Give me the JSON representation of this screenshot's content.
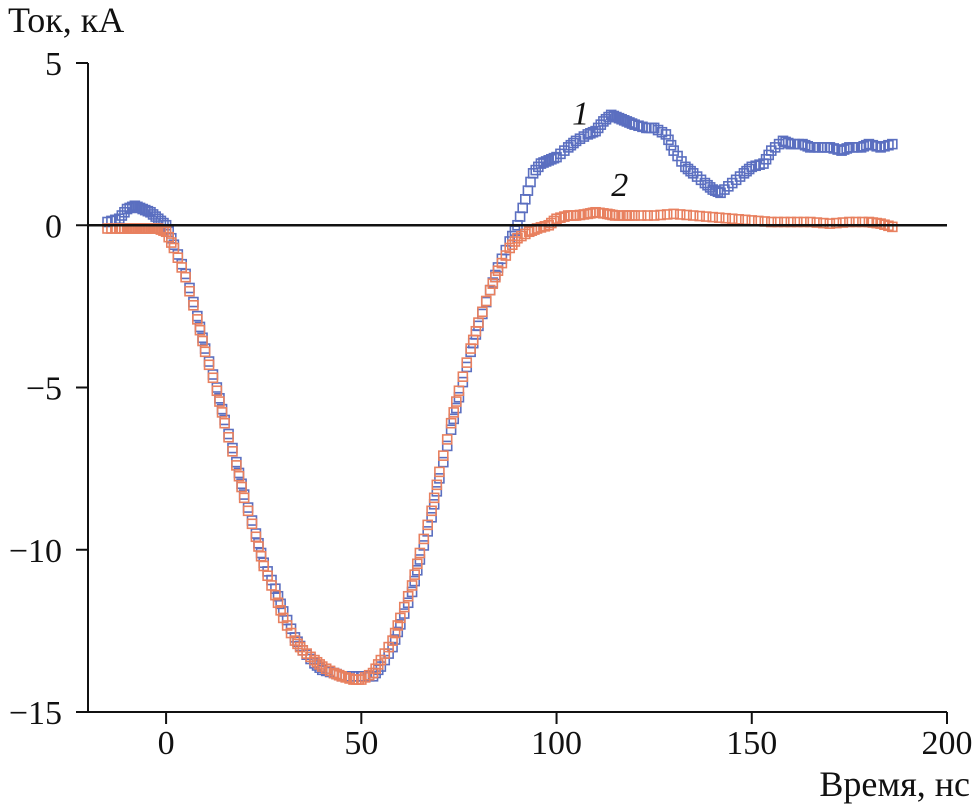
{
  "chart_data": {
    "type": "scatter",
    "ylabel": "Ток, кА",
    "xlabel": "Время, нс",
    "xlim": [
      -20,
      200
    ],
    "ylim": [
      -15,
      5
    ],
    "xticks": [
      0,
      50,
      100,
      150,
      200
    ],
    "yticks": [
      5,
      0,
      -5,
      -10,
      -15
    ],
    "ytick_labels": [
      "5",
      "0",
      "−5",
      "−10",
      "−15"
    ],
    "grid": false,
    "zero_line": true,
    "series": [
      {
        "name": "1",
        "color": "#5b6fc0",
        "marker": "square",
        "points": [
          [
            -15,
            0.1
          ],
          [
            -12,
            0.2
          ],
          [
            -10,
            0.5
          ],
          [
            -8,
            0.6
          ],
          [
            -6,
            0.5
          ],
          [
            -4,
            0.4
          ],
          [
            -2,
            0.2
          ],
          [
            0,
            0
          ],
          [
            2,
            -0.6
          ],
          [
            5,
            -1.5
          ],
          [
            8,
            -2.8
          ],
          [
            10,
            -3.8
          ],
          [
            13,
            -5.0
          ],
          [
            15,
            -6.0
          ],
          [
            18,
            -7.3
          ],
          [
            20,
            -8.3
          ],
          [
            23,
            -9.5
          ],
          [
            25,
            -10.4
          ],
          [
            28,
            -11.2
          ],
          [
            30,
            -11.9
          ],
          [
            33,
            -12.7
          ],
          [
            35,
            -13.1
          ],
          [
            38,
            -13.5
          ],
          [
            40,
            -13.7
          ],
          [
            43,
            -13.8
          ],
          [
            45,
            -13.9
          ],
          [
            48,
            -13.9
          ],
          [
            50,
            -13.9
          ],
          [
            53,
            -13.9
          ],
          [
            55,
            -13.6
          ],
          [
            58,
            -13.0
          ],
          [
            60,
            -12.3
          ],
          [
            63,
            -11.3
          ],
          [
            65,
            -10.3
          ],
          [
            68,
            -9.0
          ],
          [
            70,
            -7.8
          ],
          [
            73,
            -6.3
          ],
          [
            75,
            -5.3
          ],
          [
            78,
            -3.9
          ],
          [
            80,
            -3.1
          ],
          [
            83,
            -2.0
          ],
          [
            85,
            -1.3
          ],
          [
            88,
            -0.5
          ],
          [
            90,
            0.0
          ],
          [
            92,
            0.8
          ],
          [
            94,
            1.6
          ],
          [
            96,
            1.9
          ],
          [
            98,
            2.0
          ],
          [
            100,
            2.1
          ],
          [
            103,
            2.4
          ],
          [
            105,
            2.6
          ],
          [
            108,
            2.8
          ],
          [
            110,
            2.9
          ],
          [
            112,
            3.2
          ],
          [
            114,
            3.4
          ],
          [
            116,
            3.3
          ],
          [
            118,
            3.2
          ],
          [
            120,
            3.1
          ],
          [
            123,
            3.0
          ],
          [
            125,
            3.0
          ],
          [
            128,
            2.8
          ],
          [
            130,
            2.3
          ],
          [
            133,
            1.8
          ],
          [
            135,
            1.6
          ],
          [
            138,
            1.3
          ],
          [
            140,
            1.1
          ],
          [
            142,
            1.0
          ],
          [
            145,
            1.3
          ],
          [
            148,
            1.6
          ],
          [
            150,
            1.8
          ],
          [
            153,
            1.9
          ],
          [
            155,
            2.3
          ],
          [
            158,
            2.6
          ],
          [
            160,
            2.5
          ],
          [
            163,
            2.5
          ],
          [
            165,
            2.4
          ],
          [
            168,
            2.4
          ],
          [
            170,
            2.4
          ],
          [
            173,
            2.3
          ],
          [
            175,
            2.4
          ],
          [
            178,
            2.4
          ],
          [
            180,
            2.5
          ],
          [
            183,
            2.4
          ],
          [
            186,
            2.5
          ]
        ]
      },
      {
        "name": "2",
        "color": "#e8805f",
        "marker": "square",
        "points": [
          [
            -15,
            -0.1
          ],
          [
            -12,
            -0.1
          ],
          [
            -10,
            -0.1
          ],
          [
            -8,
            -0.1
          ],
          [
            -6,
            -0.1
          ],
          [
            -4,
            -0.1
          ],
          [
            -2,
            -0.1
          ],
          [
            0,
            -0.2
          ],
          [
            2,
            -0.7
          ],
          [
            5,
            -1.6
          ],
          [
            8,
            -2.9
          ],
          [
            10,
            -3.9
          ],
          [
            13,
            -5.1
          ],
          [
            15,
            -6.1
          ],
          [
            18,
            -7.4
          ],
          [
            20,
            -8.4
          ],
          [
            23,
            -9.6
          ],
          [
            25,
            -10.5
          ],
          [
            28,
            -11.4
          ],
          [
            30,
            -12.1
          ],
          [
            33,
            -12.8
          ],
          [
            35,
            -13.1
          ],
          [
            38,
            -13.4
          ],
          [
            40,
            -13.6
          ],
          [
            43,
            -13.8
          ],
          [
            45,
            -13.9
          ],
          [
            48,
            -14.0
          ],
          [
            50,
            -14.0
          ],
          [
            53,
            -13.8
          ],
          [
            55,
            -13.4
          ],
          [
            58,
            -12.8
          ],
          [
            60,
            -12.1
          ],
          [
            63,
            -11.1
          ],
          [
            65,
            -10.1
          ],
          [
            68,
            -8.8
          ],
          [
            70,
            -7.6
          ],
          [
            73,
            -6.1
          ],
          [
            75,
            -5.1
          ],
          [
            78,
            -3.8
          ],
          [
            80,
            -3.0
          ],
          [
            83,
            -2.0
          ],
          [
            85,
            -1.4
          ],
          [
            88,
            -0.7
          ],
          [
            90,
            -0.4
          ],
          [
            93,
            -0.2
          ],
          [
            95,
            -0.1
          ],
          [
            98,
            0.0
          ],
          [
            100,
            0.2
          ],
          [
            103,
            0.3
          ],
          [
            105,
            0.3
          ],
          [
            108,
            0.35
          ],
          [
            110,
            0.4
          ],
          [
            113,
            0.35
          ],
          [
            115,
            0.3
          ],
          [
            118,
            0.3
          ],
          [
            120,
            0.3
          ],
          [
            125,
            0.3
          ],
          [
            130,
            0.35
          ],
          [
            135,
            0.3
          ],
          [
            140,
            0.25
          ],
          [
            145,
            0.2
          ],
          [
            150,
            0.15
          ],
          [
            155,
            0.1
          ],
          [
            160,
            0.1
          ],
          [
            165,
            0.1
          ],
          [
            170,
            0.05
          ],
          [
            175,
            0.1
          ],
          [
            180,
            0.1
          ],
          [
            183,
            0.05
          ],
          [
            186,
            -0.05
          ]
        ]
      }
    ],
    "series_label_positions": {
      "1": [
        104,
        3.1
      ],
      "2": [
        114,
        0.9
      ]
    }
  }
}
